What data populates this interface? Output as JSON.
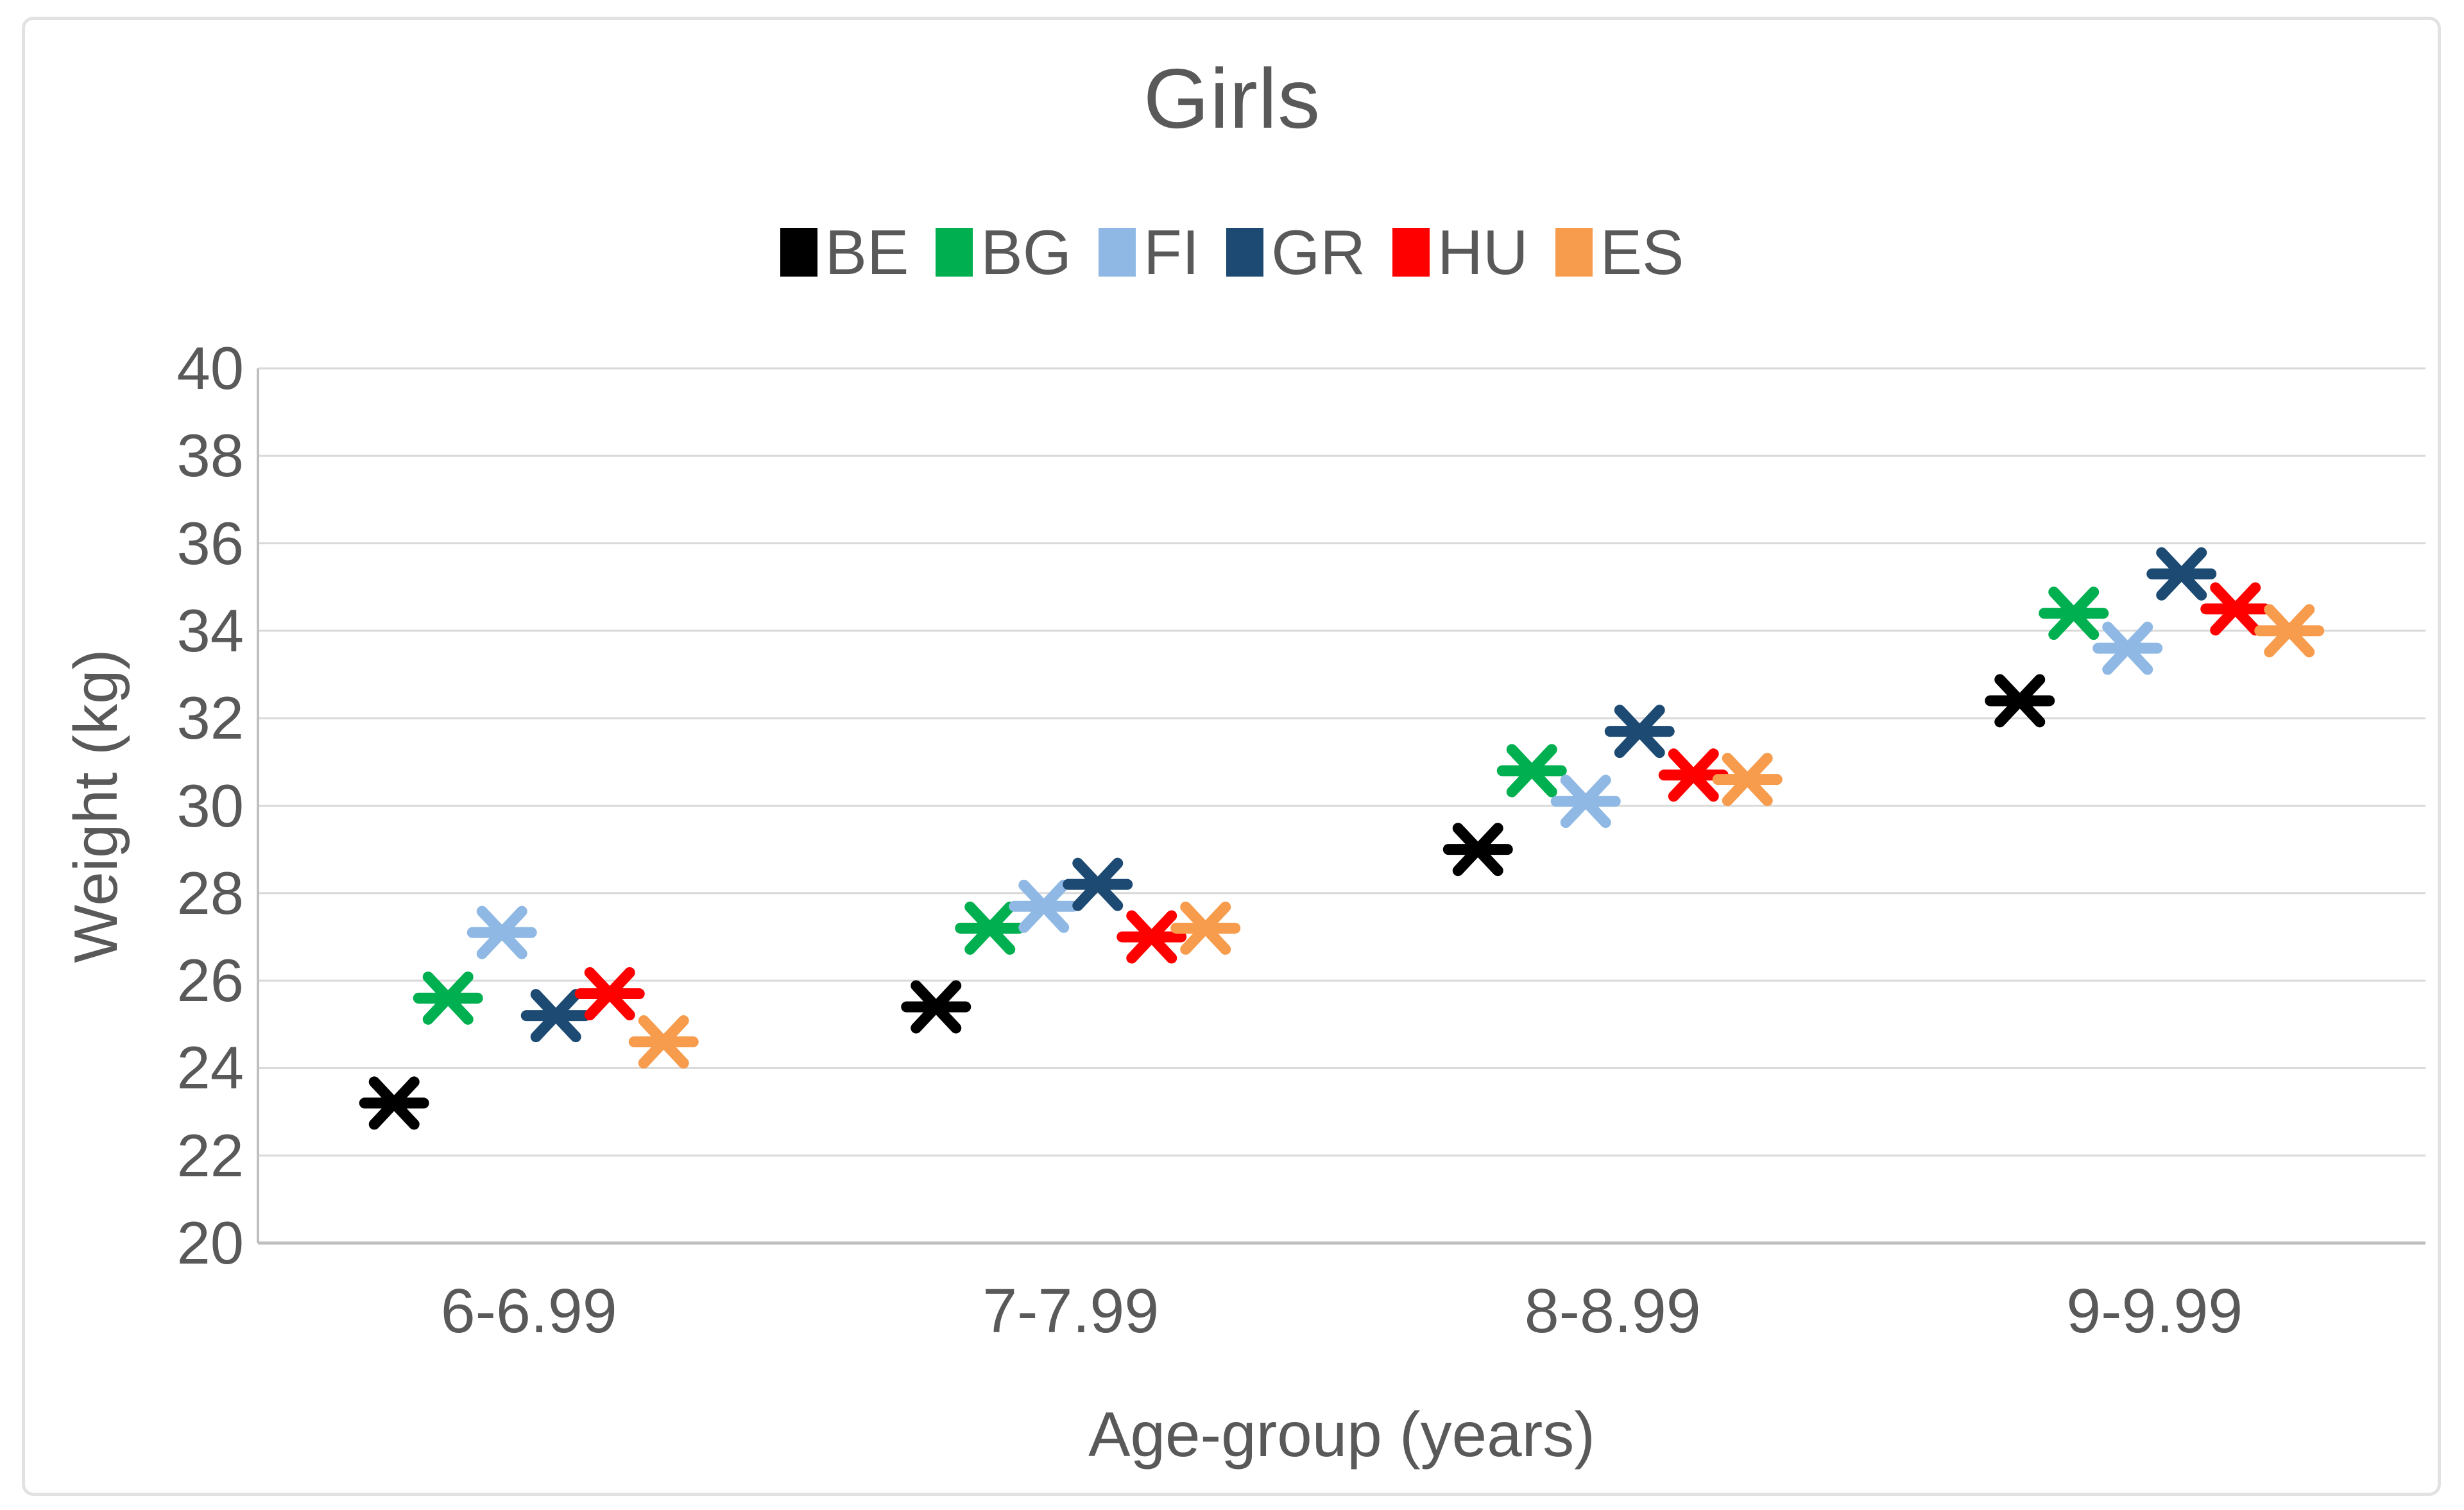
{
  "title": "Girls",
  "colors": {
    "text": "#595959",
    "gridline": "#d9d9d9",
    "axis_line": "#bfbfbf",
    "figure_border": "#e2e2e2",
    "background": "#ffffff"
  },
  "legend": {
    "position": "top",
    "items": [
      {
        "label": "BE",
        "color": "#000000"
      },
      {
        "label": "BG",
        "color": "#00b050"
      },
      {
        "label": "FI",
        "color": "#8fb9e4"
      },
      {
        "label": "GR",
        "color": "#1c4a73"
      },
      {
        "label": "HU",
        "color": "#ff0000"
      },
      {
        "label": "ES",
        "color": "#f79c4d"
      }
    ]
  },
  "chart_data": {
    "type": "scatter",
    "title": "Girls",
    "xlabel": "Age-group (years)",
    "ylabel": "Weight (kg)",
    "ylim": [
      20,
      40
    ],
    "y_ticks": [
      20,
      22,
      24,
      26,
      28,
      30,
      32,
      34,
      36,
      38,
      40
    ],
    "grid": "horizontal",
    "legend_position": "top",
    "marker": "six-arm asterisk (X plus horizontal bar)",
    "categories": [
      "6-6.99",
      "7-7.99",
      "8-8.99",
      "9-9.99"
    ],
    "series": [
      {
        "name": "BE",
        "color": "#000000",
        "values": [
          23.2,
          25.4,
          29.0,
          32.4
        ]
      },
      {
        "name": "BG",
        "color": "#00b050",
        "values": [
          25.6,
          27.2,
          30.8,
          34.4
        ]
      },
      {
        "name": "FI",
        "color": "#8fb9e4",
        "values": [
          27.1,
          27.7,
          30.1,
          33.6
        ]
      },
      {
        "name": "GR",
        "color": "#1c4a73",
        "values": [
          25.2,
          28.2,
          31.7,
          35.3
        ]
      },
      {
        "name": "HU",
        "color": "#ff0000",
        "values": [
          25.7,
          27.0,
          30.7,
          34.5
        ]
      },
      {
        "name": "ES",
        "color": "#f79c4d",
        "values": [
          24.6,
          27.2,
          30.6,
          34.0
        ]
      }
    ]
  }
}
